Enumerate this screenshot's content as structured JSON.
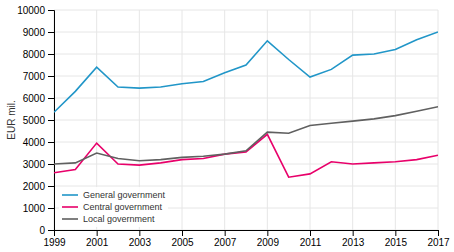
{
  "chart_data": {
    "type": "line",
    "ylabel": "EUR mil.",
    "x": [
      1999,
      2000,
      2001,
      2002,
      2003,
      2004,
      2005,
      2006,
      2007,
      2008,
      2009,
      2010,
      2011,
      2012,
      2013,
      2014,
      2015,
      2016,
      2017
    ],
    "series": [
      {
        "name": "General government",
        "color": "#2196c8",
        "values": [
          5350,
          6300,
          7400,
          6500,
          6450,
          6500,
          6650,
          6750,
          7150,
          7500,
          8600,
          7750,
          6950,
          7300,
          7950,
          8000,
          8200,
          8650,
          9000
        ]
      },
      {
        "name": "Central government",
        "color": "#e8006a",
        "values": [
          2600,
          2750,
          3950,
          3000,
          2950,
          3050,
          3200,
          3250,
          3450,
          3550,
          4350,
          2400,
          2550,
          3100,
          3000,
          3050,
          3100,
          3200,
          3400
        ]
      },
      {
        "name": "Local government",
        "color": "#606060",
        "values": [
          3000,
          3050,
          3500,
          3250,
          3150,
          3200,
          3300,
          3350,
          3450,
          3600,
          4450,
          4400,
          4750,
          4850,
          4950,
          5050,
          5200,
          5400,
          5600
        ]
      }
    ],
    "xlim": [
      1999,
      2017
    ],
    "ylim": [
      0,
      10000
    ],
    "xticks": [
      1999,
      2001,
      2003,
      2005,
      2007,
      2009,
      2011,
      2013,
      2015,
      2017
    ],
    "yticks": [
      0,
      1000,
      2000,
      3000,
      4000,
      5000,
      6000,
      7000,
      8000,
      9000,
      10000
    ],
    "grid": true,
    "legend": "lower left"
  }
}
